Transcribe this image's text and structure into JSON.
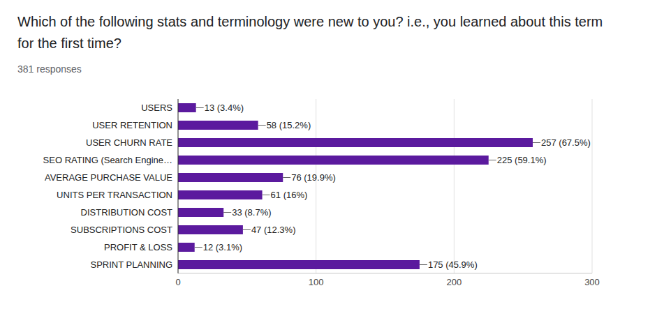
{
  "chart_data": {
    "type": "bar",
    "title": "Which of the following stats and terminology were new to you? i.e., you learned about this term for the first time?",
    "subtitle": "381 responses",
    "orientation": "horizontal",
    "categories": [
      "USERS",
      "USER RETENTION",
      "USER CHURN RATE",
      "SEO RATING (Search Engine…",
      "AVERAGE PURCHASE VALUE",
      "UNITS PER TRANSACTION",
      "DISTRIBUTION COST",
      "SUBSCRIPTIONS COST",
      "PROFIT & LOSS",
      "SPRINT PLANNING"
    ],
    "values": [
      13,
      58,
      257,
      225,
      76,
      61,
      33,
      47,
      12,
      175
    ],
    "value_labels": [
      "13 (3.4%)",
      "58 (15.2%)",
      "257 (67.5%)",
      "225 (59.1%)",
      "76 (19.9%)",
      "61 (16%)",
      "33 (8.7%)",
      "47 (12.3%)",
      "12 (3.1%)",
      "175 (45.9%)"
    ],
    "color": "#5b1a9e",
    "xlim": [
      0,
      300
    ],
    "xticks": [
      0,
      100,
      200,
      300
    ],
    "grid": true,
    "data_labels": true
  }
}
